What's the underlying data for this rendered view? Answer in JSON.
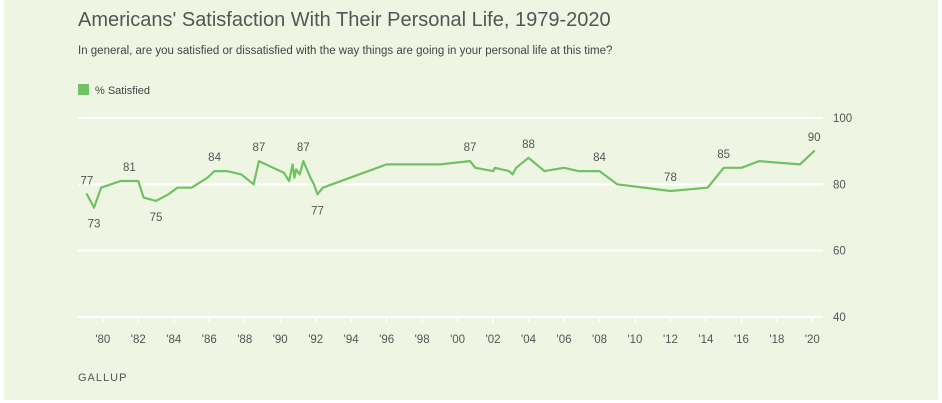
{
  "header": {
    "title": "Americans' Satisfaction With Their Personal Life, 1979-2020",
    "subtitle": "In general, are you satisfied or dissatisfied with the way things are going in your personal life at this time?"
  },
  "footer": {
    "source": "GALLUP"
  },
  "colors": {
    "line": "#70c162",
    "grid": "#ffffff",
    "background": "#eef6e3"
  },
  "chart_data": {
    "type": "line",
    "title": "Americans' Satisfaction With Their Personal Life, 1979-2020",
    "xlabel": "",
    "ylabel": "",
    "xlim": [
      1978.6,
      2020.6
    ],
    "ylim": [
      40,
      100
    ],
    "yticks": [
      40,
      60,
      80,
      100
    ],
    "xticks": [
      {
        "x": 1980,
        "label": "'80"
      },
      {
        "x": 1982,
        "label": "'82"
      },
      {
        "x": 1984,
        "label": "'84"
      },
      {
        "x": 1986,
        "label": "'86"
      },
      {
        "x": 1988,
        "label": "'88"
      },
      {
        "x": 1990,
        "label": "'90"
      },
      {
        "x": 1992,
        "label": "'92"
      },
      {
        "x": 1994,
        "label": "'94"
      },
      {
        "x": 1996,
        "label": "'96"
      },
      {
        "x": 1998,
        "label": "'98"
      },
      {
        "x": 2000,
        "label": "'00"
      },
      {
        "x": 2002,
        "label": "'02"
      },
      {
        "x": 2004,
        "label": "'04"
      },
      {
        "x": 2006,
        "label": "'06"
      },
      {
        "x": 2008,
        "label": "'08"
      },
      {
        "x": 2010,
        "label": "'10"
      },
      {
        "x": 2012,
        "label": "'12"
      },
      {
        "x": 2014,
        "label": "'14"
      },
      {
        "x": 2016,
        "label": "'16"
      },
      {
        "x": 2018,
        "label": "'18"
      },
      {
        "x": 2020,
        "label": "'20"
      }
    ],
    "grid": true,
    "legend": "top-left",
    "series": [
      {
        "name": "% Satisfied",
        "color": "#70c162",
        "points": [
          [
            1979.1,
            77
          ],
          [
            1979.5,
            73
          ],
          [
            1979.9,
            79
          ],
          [
            1981.0,
            81
          ],
          [
            1982.0,
            81
          ],
          [
            1982.3,
            76
          ],
          [
            1983.0,
            75
          ],
          [
            1983.7,
            77
          ],
          [
            1984.2,
            79
          ],
          [
            1985.0,
            79
          ],
          [
            1985.9,
            82
          ],
          [
            1986.3,
            84
          ],
          [
            1987.0,
            84
          ],
          [
            1987.8,
            83
          ],
          [
            1988.5,
            80
          ],
          [
            1988.8,
            87
          ],
          [
            1989.6,
            85
          ],
          [
            1990.2,
            83.5
          ],
          [
            1990.5,
            81
          ],
          [
            1990.7,
            86
          ],
          [
            1990.8,
            82
          ],
          [
            1990.9,
            84.5
          ],
          [
            1991.1,
            83
          ],
          [
            1991.3,
            87
          ],
          [
            1991.7,
            82
          ],
          [
            1991.9,
            80
          ],
          [
            1992.1,
            77
          ],
          [
            1992.4,
            79
          ],
          [
            1996.0,
            86
          ],
          [
            1999.0,
            86
          ],
          [
            2000.7,
            87
          ],
          [
            2001.0,
            85
          ],
          [
            2002.0,
            84
          ],
          [
            2002.1,
            85
          ],
          [
            2002.9,
            84
          ],
          [
            2003.1,
            83
          ],
          [
            2003.3,
            85
          ],
          [
            2004.0,
            88
          ],
          [
            2004.9,
            84
          ],
          [
            2006.0,
            85
          ],
          [
            2006.8,
            84
          ],
          [
            2008.0,
            84
          ],
          [
            2009.0,
            80
          ],
          [
            2012.0,
            78
          ],
          [
            2014.1,
            79
          ],
          [
            2015.0,
            85
          ],
          [
            2016.0,
            85
          ],
          [
            2017.0,
            87
          ],
          [
            2019.3,
            86
          ],
          [
            2020.1,
            90
          ]
        ]
      }
    ],
    "annotations": [
      {
        "x": 1979.1,
        "y": 77,
        "label": "77",
        "pos": "above"
      },
      {
        "x": 1979.5,
        "y": 73,
        "label": "73",
        "pos": "below"
      },
      {
        "x": 1981.5,
        "y": 81,
        "label": "81",
        "pos": "above"
      },
      {
        "x": 1983.0,
        "y": 75,
        "label": "75",
        "pos": "below"
      },
      {
        "x": 1986.3,
        "y": 84,
        "label": "84",
        "pos": "above"
      },
      {
        "x": 1988.8,
        "y": 87,
        "label": "87",
        "pos": "above"
      },
      {
        "x": 1991.3,
        "y": 87,
        "label": "87",
        "pos": "above"
      },
      {
        "x": 1992.1,
        "y": 77,
        "label": "77",
        "pos": "below"
      },
      {
        "x": 2000.7,
        "y": 87,
        "label": "87",
        "pos": "above"
      },
      {
        "x": 2004.0,
        "y": 88,
        "label": "88",
        "pos": "above"
      },
      {
        "x": 2008.0,
        "y": 84,
        "label": "84",
        "pos": "above"
      },
      {
        "x": 2012.0,
        "y": 78,
        "label": "78",
        "pos": "above"
      },
      {
        "x": 2015.0,
        "y": 85,
        "label": "85",
        "pos": "above"
      },
      {
        "x": 2020.1,
        "y": 90,
        "label": "90",
        "pos": "above"
      }
    ]
  }
}
